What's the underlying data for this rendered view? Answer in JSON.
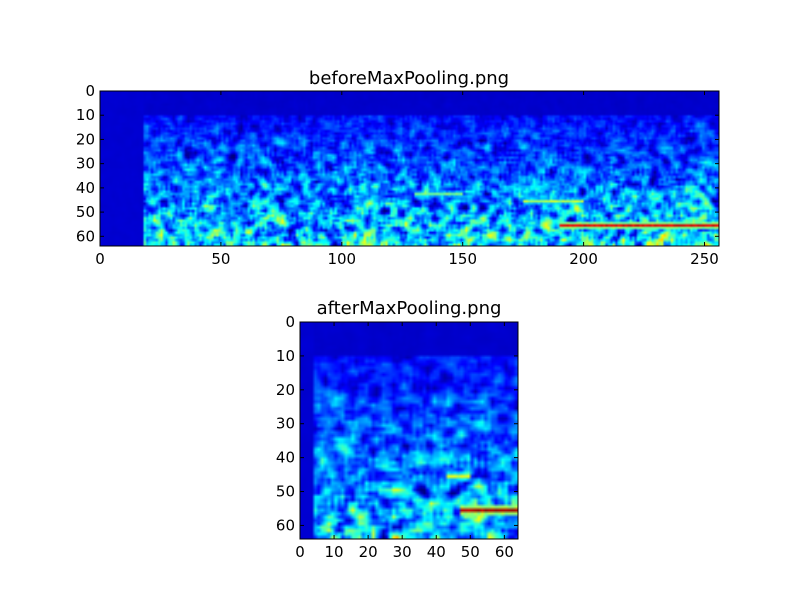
{
  "chart_data": [
    {
      "type": "heatmap",
      "title": "beforeMaxPooling.png",
      "xlabel": "",
      "ylabel": "",
      "xlim": [
        0,
        256
      ],
      "ylim": [
        64,
        0
      ],
      "x_ticks": [
        0,
        50,
        100,
        150,
        200,
        250
      ],
      "x_tick_labels": [
        "0",
        "50",
        "100",
        "150",
        "200",
        "250"
      ],
      "y_ticks": [
        0,
        10,
        20,
        30,
        40,
        50,
        60
      ],
      "y_tick_labels": [
        "0",
        "10",
        "20",
        "30",
        "40",
        "50",
        "60"
      ],
      "grid": false,
      "colormap": "jet",
      "value_range": [
        0,
        1
      ],
      "dark_band_columns": [
        0,
        18
      ],
      "quiet_band_rows": [
        0,
        9
      ],
      "features": [
        {
          "name": "horizontal streak",
          "row": 55,
          "col_range": [
            190,
            256
          ],
          "intensity": 0.9
        },
        {
          "name": "faint ridge",
          "row": 45,
          "col_range": [
            175,
            200
          ],
          "intensity": 0.55
        },
        {
          "name": "faint ridge 2",
          "row": 42,
          "col_range": [
            130,
            150
          ],
          "intensity": 0.5
        }
      ]
    },
    {
      "type": "heatmap",
      "title": "afterMaxPooling.png",
      "xlabel": "",
      "ylabel": "",
      "xlim": [
        0,
        64
      ],
      "ylim": [
        64,
        0
      ],
      "x_ticks": [
        0,
        10,
        20,
        30,
        40,
        50,
        60
      ],
      "x_tick_labels": [
        "0",
        "10",
        "20",
        "30",
        "40",
        "50",
        "60"
      ],
      "y_ticks": [
        0,
        10,
        20,
        30,
        40,
        50,
        60
      ],
      "y_tick_labels": [
        "0",
        "10",
        "20",
        "30",
        "40",
        "50",
        "60"
      ],
      "grid": false,
      "colormap": "jet",
      "value_range": [
        0,
        1
      ],
      "dark_band_columns": [
        0,
        4
      ],
      "quiet_band_rows": [
        0,
        9
      ],
      "features": [
        {
          "name": "horizontal streak",
          "row": 55,
          "col_range": [
            47,
            64
          ],
          "intensity": 0.95
        },
        {
          "name": "faint ridge",
          "row": 45,
          "col_range": [
            43,
            50
          ],
          "intensity": 0.6
        }
      ]
    }
  ]
}
